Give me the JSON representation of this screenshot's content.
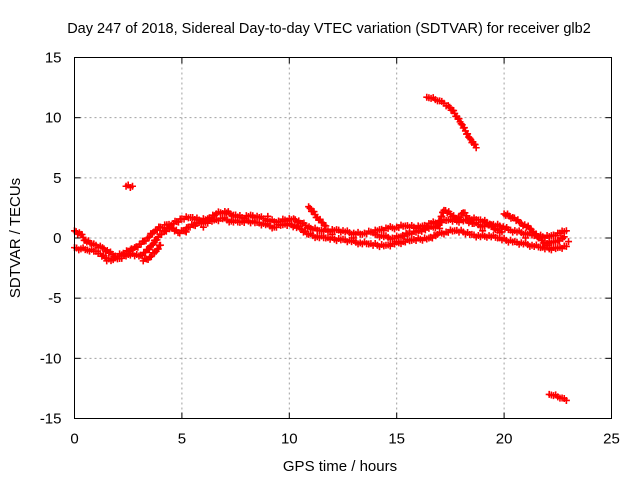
{
  "chart_data": {
    "type": "scatter",
    "title": "Day 247 of 2018, Sidereal Day-to-day VTEC variation (SDTVAR) for receiver glb2",
    "xlabel": "GPS time / hours",
    "ylabel": "SDTVAR / TECUs",
    "xlim": [
      0,
      25
    ],
    "ylim": [
      -15,
      15
    ],
    "xticks": [
      0,
      5,
      10,
      15,
      20,
      25
    ],
    "yticks": [
      -15,
      -10,
      -5,
      0,
      5,
      10,
      15
    ],
    "xtick_labels": [
      "0",
      "5",
      "10",
      "15",
      "20",
      "25"
    ],
    "ytick_labels": [
      "-15",
      "-10",
      "-5",
      "0",
      "5",
      "10",
      "15"
    ],
    "grid": true,
    "marker": "+",
    "color": "#ff0000",
    "series": [
      {
        "name": "main-band-upper",
        "points": [
          [
            0.0,
            0.6
          ],
          [
            0.3,
            0.3
          ],
          [
            0.5,
            -0.2
          ],
          [
            0.8,
            -0.5
          ],
          [
            1.0,
            -0.6
          ],
          [
            1.3,
            -0.8
          ],
          [
            1.6,
            -1.2
          ],
          [
            1.9,
            -1.5
          ],
          [
            2.2,
            -1.4
          ],
          [
            2.5,
            -1.1
          ],
          [
            2.8,
            -0.8
          ],
          [
            3.1,
            -0.5
          ],
          [
            3.4,
            0.0
          ],
          [
            3.7,
            0.5
          ],
          [
            4.0,
            0.9
          ],
          [
            4.3,
            1.1
          ],
          [
            4.6,
            1.2
          ],
          [
            5.0,
            1.6
          ],
          [
            5.4,
            1.7
          ],
          [
            5.8,
            1.5
          ],
          [
            6.2,
            1.6
          ],
          [
            6.6,
            2.0
          ],
          [
            7.0,
            2.2
          ],
          [
            7.4,
            1.9
          ],
          [
            7.8,
            1.7
          ],
          [
            8.2,
            1.9
          ],
          [
            8.6,
            1.7
          ],
          [
            9.0,
            1.5
          ],
          [
            9.4,
            1.3
          ],
          [
            9.8,
            1.5
          ],
          [
            10.2,
            1.6
          ],
          [
            10.6,
            1.2
          ],
          [
            11.0,
            0.8
          ],
          [
            11.4,
            0.6
          ],
          [
            11.8,
            0.6
          ],
          [
            12.2,
            0.7
          ],
          [
            12.6,
            0.5
          ],
          [
            13.0,
            0.4
          ],
          [
            13.4,
            0.3
          ],
          [
            13.8,
            0.5
          ],
          [
            14.2,
            0.7
          ],
          [
            14.6,
            0.8
          ],
          [
            15.0,
            0.9
          ],
          [
            15.4,
            1.0
          ],
          [
            15.8,
            0.9
          ],
          [
            16.2,
            1.0
          ],
          [
            16.6,
            1.2
          ],
          [
            17.0,
            1.3
          ],
          [
            17.4,
            1.5
          ],
          [
            17.8,
            1.4
          ],
          [
            18.2,
            1.5
          ],
          [
            18.6,
            1.2
          ],
          [
            19.0,
            1.0
          ],
          [
            19.4,
            1.1
          ],
          [
            19.8,
            1.0
          ],
          [
            20.2,
            0.7
          ],
          [
            20.6,
            0.5
          ],
          [
            21.0,
            0.4
          ],
          [
            21.4,
            0.2
          ],
          [
            21.8,
            0.1
          ],
          [
            22.2,
            0.2
          ],
          [
            22.6,
            0.4
          ],
          [
            22.9,
            0.6
          ]
        ]
      },
      {
        "name": "main-band-lower",
        "points": [
          [
            0.0,
            -0.8
          ],
          [
            0.3,
            -0.9
          ],
          [
            0.6,
            -1.0
          ],
          [
            0.9,
            -1.1
          ],
          [
            1.2,
            -1.3
          ],
          [
            1.5,
            -1.7
          ],
          [
            1.8,
            -1.8
          ],
          [
            2.1,
            -1.7
          ],
          [
            2.4,
            -1.5
          ],
          [
            2.7,
            -1.3
          ],
          [
            3.0,
            -1.5
          ],
          [
            3.3,
            -1.2
          ],
          [
            3.6,
            -0.6
          ],
          [
            3.9,
            0.1
          ],
          [
            4.2,
            0.6
          ],
          [
            4.5,
            0.9
          ],
          [
            4.9,
            0.4
          ],
          [
            5.3,
            0.9
          ],
          [
            5.7,
            1.2
          ],
          [
            6.1,
            1.3
          ],
          [
            6.5,
            1.5
          ],
          [
            6.9,
            1.6
          ],
          [
            7.3,
            1.4
          ],
          [
            7.7,
            1.3
          ],
          [
            8.1,
            1.4
          ],
          [
            8.5,
            1.3
          ],
          [
            8.9,
            1.1
          ],
          [
            9.3,
            0.9
          ],
          [
            9.7,
            1.1
          ],
          [
            10.1,
            1.1
          ],
          [
            10.5,
            0.8
          ],
          [
            10.9,
            0.3
          ],
          [
            11.3,
            0.1
          ],
          [
            11.7,
            0.0
          ],
          [
            12.1,
            -0.1
          ],
          [
            12.5,
            -0.1
          ],
          [
            12.9,
            -0.3
          ],
          [
            13.3,
            -0.4
          ],
          [
            13.7,
            -0.5
          ],
          [
            14.1,
            -0.6
          ],
          [
            14.5,
            -0.6
          ],
          [
            14.9,
            -0.5
          ],
          [
            15.3,
            -0.3
          ],
          [
            15.7,
            -0.2
          ],
          [
            16.1,
            -0.1
          ],
          [
            16.5,
            0.0
          ],
          [
            16.9,
            0.3
          ],
          [
            17.3,
            0.5
          ],
          [
            17.7,
            0.6
          ],
          [
            18.1,
            0.5
          ],
          [
            18.5,
            0.3
          ],
          [
            18.9,
            0.1
          ],
          [
            19.3,
            0.2
          ],
          [
            19.7,
            0.0
          ],
          [
            20.1,
            -0.2
          ],
          [
            20.5,
            -0.3
          ],
          [
            20.9,
            -0.5
          ],
          [
            21.3,
            -0.6
          ],
          [
            21.7,
            -0.8
          ],
          [
            22.1,
            -0.9
          ],
          [
            22.5,
            -0.8
          ],
          [
            22.9,
            -0.7
          ]
        ]
      },
      {
        "name": "middle-streaks",
        "points": [
          [
            10.9,
            2.6
          ],
          [
            11.1,
            2.2
          ],
          [
            11.3,
            1.7
          ],
          [
            11.5,
            1.3
          ],
          [
            11.7,
            1.0
          ],
          [
            14.0,
            0.3
          ],
          [
            14.4,
            0.1
          ],
          [
            14.8,
            0.0
          ],
          [
            15.2,
            0.1
          ],
          [
            15.6,
            0.4
          ],
          [
            16.0,
            0.6
          ],
          [
            16.5,
            0.8
          ],
          [
            16.9,
            1.0
          ],
          [
            17.2,
            2.3
          ],
          [
            17.5,
            2.0
          ],
          [
            17.8,
            1.6
          ],
          [
            18.1,
            2.1
          ],
          [
            18.4,
            1.6
          ],
          [
            18.8,
            1.5
          ],
          [
            19.2,
            1.3
          ],
          [
            19.6,
            0.7
          ],
          [
            19.9,
            0.5
          ],
          [
            20.0,
            2.0
          ],
          [
            20.4,
            1.7
          ],
          [
            20.8,
            1.2
          ],
          [
            21.2,
            0.8
          ],
          [
            21.6,
            0.0
          ],
          [
            21.9,
            -0.4
          ],
          [
            22.2,
            -0.4
          ],
          [
            22.5,
            -0.2
          ],
          [
            22.8,
            0.1
          ],
          [
            3.2,
            -1.9
          ],
          [
            3.5,
            -1.6
          ],
          [
            3.8,
            -1.1
          ],
          [
            4.0,
            -0.6
          ],
          [
            1.5,
            -1.9
          ],
          [
            2.6,
            -1.0
          ],
          [
            5.2,
            0.5
          ],
          [
            6.0,
            0.9
          ],
          [
            9.0,
            1.8
          ],
          [
            12.0,
            0.3
          ],
          [
            13.0,
            0.0
          ],
          [
            15.0,
            -0.3
          ],
          [
            17.0,
            0.8
          ],
          [
            19.0,
            0.6
          ],
          [
            21.0,
            0.0
          ],
          [
            22.0,
            -0.6
          ],
          [
            23.0,
            -0.3
          ]
        ]
      },
      {
        "name": "isolated-group-a",
        "points": [
          [
            2.4,
            4.3
          ],
          [
            2.5,
            4.4
          ],
          [
            2.6,
            4.2
          ],
          [
            2.7,
            4.3
          ]
        ]
      },
      {
        "name": "isolated-group-b",
        "points": [
          [
            16.4,
            11.7
          ],
          [
            16.6,
            11.6
          ],
          [
            16.8,
            11.5
          ],
          [
            17.0,
            11.4
          ],
          [
            17.2,
            11.2
          ],
          [
            17.4,
            11.0
          ],
          [
            17.6,
            10.6
          ],
          [
            17.8,
            10.1
          ],
          [
            18.0,
            9.5
          ],
          [
            18.2,
            8.9
          ],
          [
            18.4,
            8.3
          ],
          [
            18.6,
            7.8
          ],
          [
            18.7,
            7.5
          ]
        ]
      },
      {
        "name": "isolated-group-c",
        "points": [
          [
            22.1,
            -13.0
          ],
          [
            22.3,
            -13.1
          ],
          [
            22.5,
            -13.2
          ],
          [
            22.7,
            -13.3
          ],
          [
            22.9,
            -13.5
          ]
        ]
      }
    ]
  }
}
